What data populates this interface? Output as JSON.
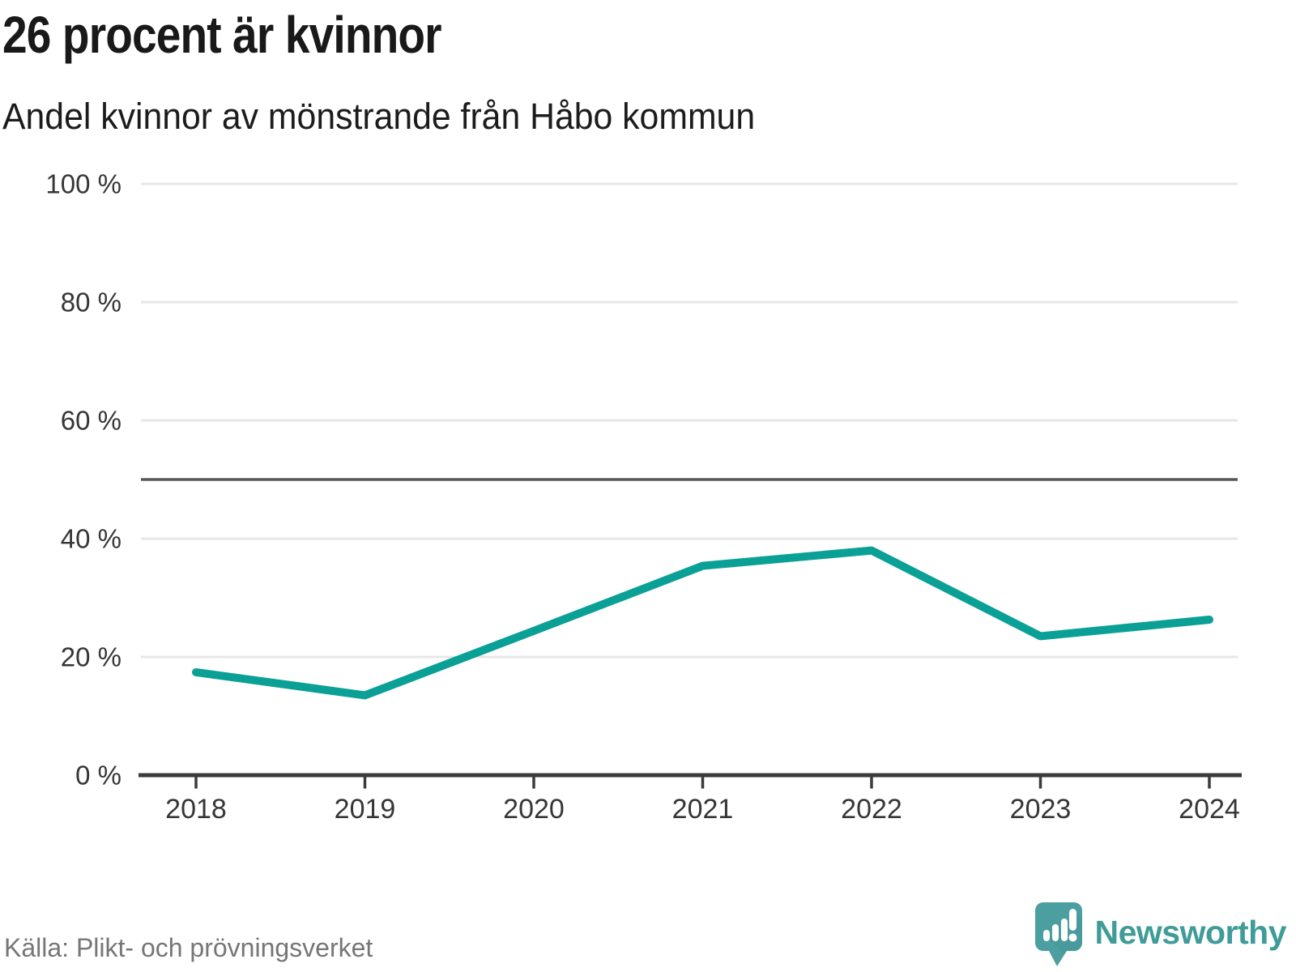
{
  "header": {
    "title": "26 procent är kvinnor",
    "subtitle": "Andel kvinnor av mönstrande från Håbo kommun"
  },
  "footer": {
    "source": "Källa: Plikt- och prövningsverket",
    "brand": "Newsworthy"
  },
  "chart_data": {
    "type": "line",
    "x": [
      2018,
      2019,
      2020,
      2021,
      2022,
      2023,
      2024
    ],
    "series": [
      {
        "name": "Andel kvinnor av mönstrande",
        "values": [
          17.4,
          13.5,
          24.4,
          35.4,
          38.0,
          23.5,
          26.3
        ]
      }
    ],
    "title": "26 procent är kvinnor",
    "subtitle": "Andel kvinnor av mönstrande från Håbo kommun",
    "xlabel": "",
    "ylabel": "",
    "ylim": [
      0,
      100
    ],
    "yticks": [
      0,
      20,
      40,
      60,
      80,
      100
    ],
    "ytick_format": "{v} %",
    "reference_line": 50,
    "grid": "horizontal",
    "legend": "none",
    "colors": {
      "line": "#0aa096",
      "grid": "#e7e7e7",
      "reference": "#54585b",
      "axis": "#3b3b3b",
      "tick_text": "#363636",
      "logo_icon": "#4c9fa1",
      "logo_icon_shadow": "#44949a"
    }
  }
}
